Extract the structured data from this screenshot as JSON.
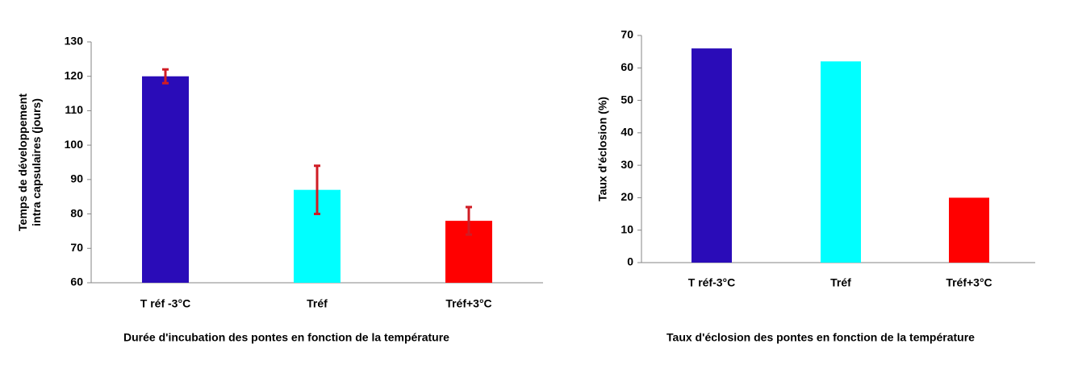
{
  "chart_data": [
    {
      "type": "bar",
      "y_label": [
        "Temps de développement",
        "intra capsulaires (jours)"
      ],
      "caption": "Durée d'incubation des pontes en fonction de la température",
      "categories": [
        "T réf -3°C",
        "Tréf",
        "Tréf+3°C"
      ],
      "values": [
        120,
        87,
        78
      ],
      "errors": [
        2,
        7,
        4
      ],
      "colors": [
        "#2a0cb8",
        "#00ffff",
        "#ff0000"
      ],
      "error_color": "#d01c24",
      "ylim": [
        60,
        130
      ],
      "yticks": [
        60,
        70,
        80,
        90,
        100,
        110,
        120,
        130
      ]
    },
    {
      "type": "bar",
      "y_label": [
        "Taux d'éclosion (%)"
      ],
      "caption": "Taux d'éclosion des pontes en fonction de la température",
      "categories": [
        "T réf-3°C",
        "Tréf",
        "Tréf+3°C"
      ],
      "values": [
        66,
        62,
        20
      ],
      "colors": [
        "#2a0cb8",
        "#00ffff",
        "#ff0000"
      ],
      "ylim": [
        0,
        70
      ],
      "yticks": [
        0,
        10,
        20,
        30,
        40,
        50,
        60,
        70
      ]
    }
  ]
}
